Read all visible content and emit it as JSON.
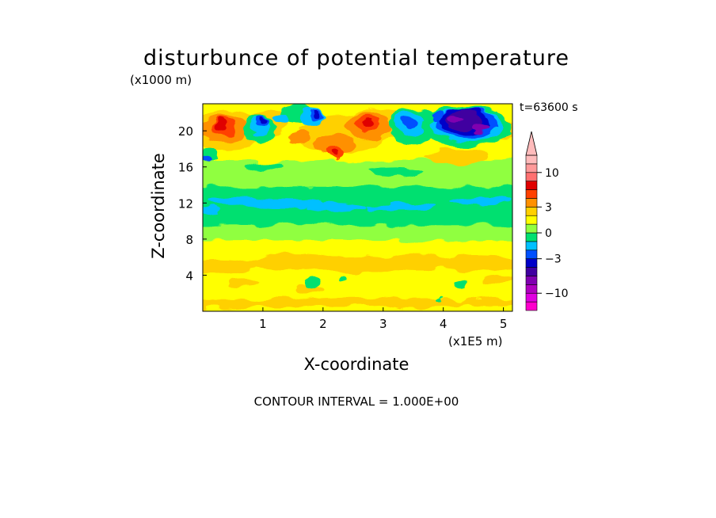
{
  "chart_data": {
    "type": "heatmap",
    "title": "disturbunce of potential temperature",
    "z_unit": "(x1000 m)",
    "x_unit": "(x1E5 m)",
    "time_label": "t=63600 s",
    "xlabel": "X-coordinate",
    "ylabel": "Z-coordinate",
    "footer": "CONTOUR INTERVAL = 1.000E+00",
    "xlim": [
      0,
      5.15
    ],
    "ylim": [
      0,
      23
    ],
    "x_ticks": [
      1,
      2,
      3,
      4,
      5
    ],
    "x_tick_labels": [
      "1",
      "2",
      "3",
      "4",
      "5"
    ],
    "y_ticks": [
      4,
      8,
      12,
      16,
      20
    ],
    "y_tick_labels": [
      "4",
      "8",
      "12",
      "16",
      "20"
    ],
    "colorbar": {
      "levels": [
        -14,
        -12,
        -10,
        -8,
        -6,
        -4,
        -3,
        -2,
        -1,
        0,
        1,
        2,
        3,
        4,
        6,
        8,
        10,
        12,
        14
      ],
      "tick_values": [
        10,
        3,
        0,
        -3,
        -10
      ],
      "tick_labels": [
        "10",
        "3",
        "0",
        "-3",
        "-10"
      ],
      "colors": [
        "#ff00cc",
        "#e000e0",
        "#b000c0",
        "#8000b0",
        "#4000a0",
        "#0000c8",
        "#0050ff",
        "#00c0ff",
        "#00e070",
        "#90ff40",
        "#ffff00",
        "#ffd000",
        "#ff9000",
        "#ff4000",
        "#e00000",
        "#ff7070",
        "#ff9999",
        "#ffbbbb"
      ],
      "extend_top": true
    },
    "field_description_bands": [
      {
        "z_from": 0.5,
        "z_to": 8,
        "value": 1
      },
      {
        "z_from": 8,
        "z_to": 10,
        "value": 0
      },
      {
        "z_from": 10,
        "z_to": 14,
        "value": -1
      },
      {
        "z_from": 14,
        "z_to": 17.5,
        "value": 1
      }
    ]
  }
}
